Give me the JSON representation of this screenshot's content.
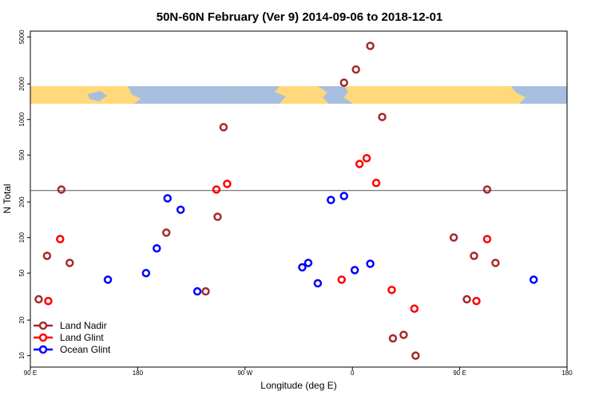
{
  "chart_data": {
    "type": "scatter",
    "title": "50N-60N February (Ver 9)   2014-09-06 to 2018-12-01",
    "xlabel": "Longitude (deg E)",
    "ylabel": "N Total",
    "y_scale": "log",
    "ylim": [
      8,
      5600
    ],
    "xlim": [
      90,
      540
    ],
    "reference_line": 250,
    "x_ticks": [
      {
        "value": 90,
        "label": "90 E"
      },
      {
        "value": 180,
        "label": "180"
      },
      {
        "value": 270,
        "label": "90 W"
      },
      {
        "value": 360,
        "label": "0"
      },
      {
        "value": 450,
        "label": "90 E"
      },
      {
        "value": 540,
        "label": "180"
      }
    ],
    "y_ticks": [
      {
        "value": 10,
        "label": "10"
      },
      {
        "value": 20,
        "label": "20"
      },
      {
        "value": 50,
        "label": "50"
      },
      {
        "value": 100,
        "label": "100"
      },
      {
        "value": 200,
        "label": "200"
      },
      {
        "value": 500,
        "label": "500"
      },
      {
        "value": 1000,
        "label": "1000"
      },
      {
        "value": 2000,
        "label": "2000"
      },
      {
        "value": 5000,
        "label": "5000"
      }
    ],
    "legend": [
      {
        "name": "Land Nadir",
        "color": "#a52a2a"
      },
      {
        "name": "Land Glint",
        "color": "#ff0000"
      },
      {
        "name": "Ocean Glint",
        "color": "#0000ff"
      }
    ],
    "series": [
      {
        "name": "Land Nadir",
        "color": "#a52a2a",
        "points": [
          {
            "x": 97,
            "y": 30
          },
          {
            "x": 104,
            "y": 70
          },
          {
            "x": 116,
            "y": 255
          },
          {
            "x": 123,
            "y": 61
          },
          {
            "x": 204,
            "y": 110
          },
          {
            "x": 237,
            "y": 35
          },
          {
            "x": 247,
            "y": 150
          },
          {
            "x": 252,
            "y": 860
          },
          {
            "x": 353,
            "y": 2050
          },
          {
            "x": 363,
            "y": 2650
          },
          {
            "x": 375,
            "y": 4200
          },
          {
            "x": 385,
            "y": 1050
          },
          {
            "x": 394,
            "y": 14
          },
          {
            "x": 403,
            "y": 15
          },
          {
            "x": 413,
            "y": 10
          },
          {
            "x": 445,
            "y": 100
          },
          {
            "x": 456,
            "y": 30
          },
          {
            "x": 462,
            "y": 70
          },
          {
            "x": 473,
            "y": 255
          },
          {
            "x": 480,
            "y": 61
          }
        ]
      },
      {
        "name": "Land Glint",
        "color": "#ff0000",
        "points": [
          {
            "x": 105,
            "y": 29
          },
          {
            "x": 115,
            "y": 97
          },
          {
            "x": 246,
            "y": 255
          },
          {
            "x": 255,
            "y": 285
          },
          {
            "x": 351,
            "y": 44
          },
          {
            "x": 366,
            "y": 420
          },
          {
            "x": 372,
            "y": 470
          },
          {
            "x": 380,
            "y": 290
          },
          {
            "x": 393,
            "y": 36
          },
          {
            "x": 412,
            "y": 25
          },
          {
            "x": 464,
            "y": 29
          },
          {
            "x": 473,
            "y": 97
          }
        ]
      },
      {
        "name": "Ocean Glint",
        "color": "#0000ff",
        "points": [
          {
            "x": 155,
            "y": 44
          },
          {
            "x": 187,
            "y": 50
          },
          {
            "x": 196,
            "y": 81
          },
          {
            "x": 205,
            "y": 215
          },
          {
            "x": 216,
            "y": 172
          },
          {
            "x": 230,
            "y": 35
          },
          {
            "x": 318,
            "y": 56
          },
          {
            "x": 323,
            "y": 61
          },
          {
            "x": 331,
            "y": 41
          },
          {
            "x": 342,
            "y": 208
          },
          {
            "x": 353,
            "y": 225
          },
          {
            "x": 362,
            "y": 53
          },
          {
            "x": 375,
            "y": 60
          },
          {
            "x": 512,
            "y": 44
          }
        ]
      }
    ]
  }
}
